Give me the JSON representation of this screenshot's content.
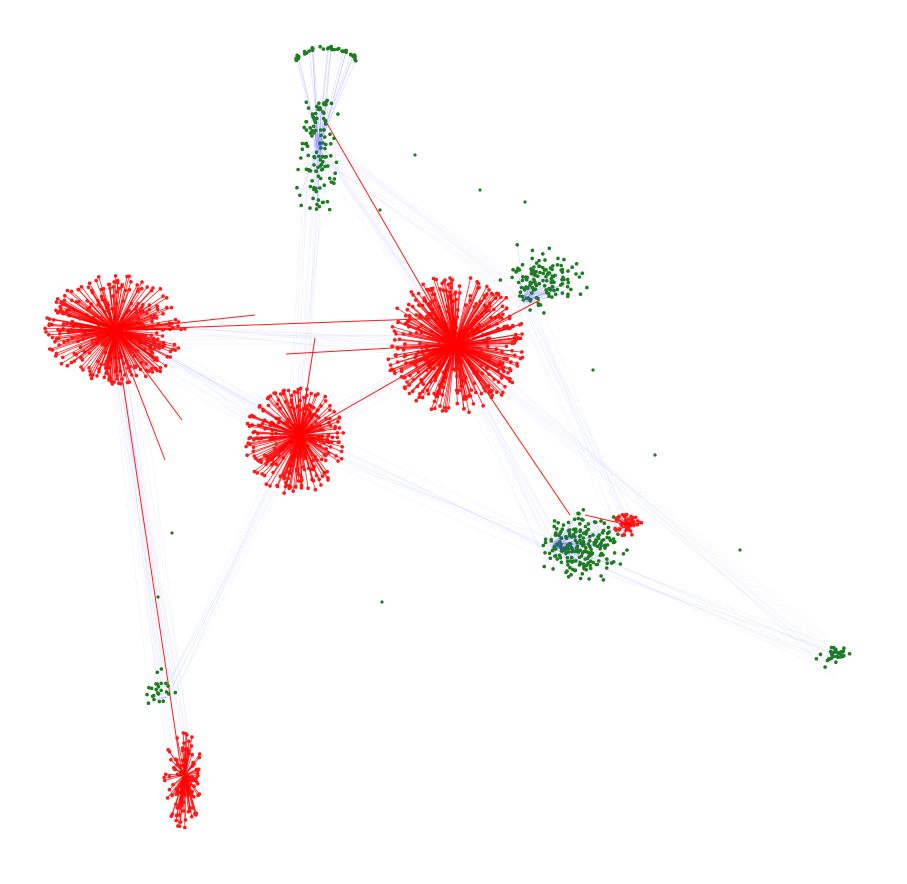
{
  "diagram": {
    "type": "network-graph",
    "background": "#ffffff",
    "colors": {
      "red_node": "#ff1a1a",
      "red_edge": "#ff0000",
      "green_node": "#1e7d1e",
      "blue_edge": "#3b3bff",
      "faint_edge": "#c8c8ff"
    },
    "clusters": [
      {
        "id": "green-top",
        "color": "green",
        "node_count": 160
      },
      {
        "id": "red-left",
        "color": "red",
        "node_count": 340
      },
      {
        "id": "red-center",
        "color": "red",
        "node_count": 420
      },
      {
        "id": "red-middle",
        "color": "red",
        "node_count": 280
      },
      {
        "id": "green-right-upper",
        "color": "green",
        "node_count": 130
      },
      {
        "id": "green-lower-middle",
        "color": "green",
        "node_count": 220
      },
      {
        "id": "red-small-right",
        "color": "red",
        "node_count": 40
      },
      {
        "id": "green-far-right",
        "color": "green",
        "node_count": 35
      },
      {
        "id": "green-bottom-left",
        "color": "green",
        "node_count": 25
      },
      {
        "id": "red-bottom-left",
        "color": "red",
        "node_count": 110
      }
    ]
  }
}
